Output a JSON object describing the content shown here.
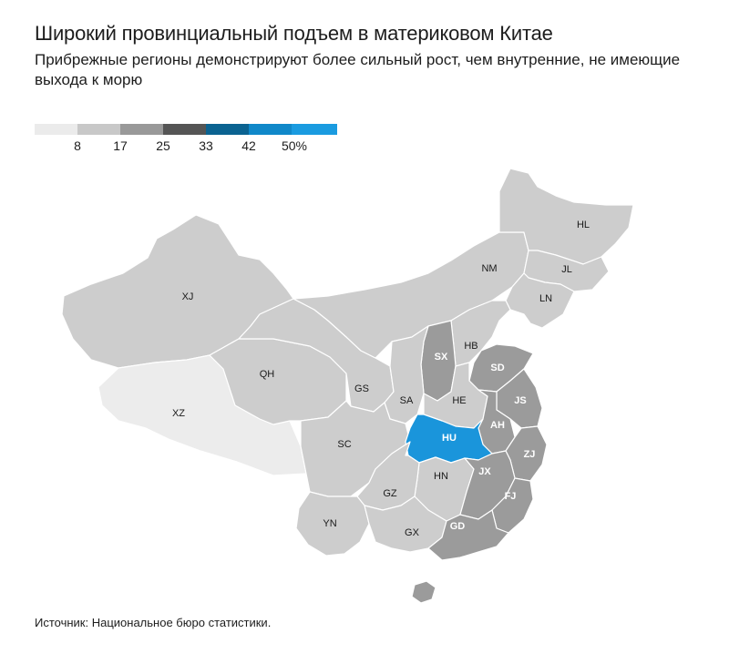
{
  "title": "Широкий провинциальный подъем в материковом Китае",
  "subtitle": "Прибрежные регионы демонстрируют более сильный рост, чем внутренние, не имеющие выхода к морю",
  "legend": {
    "colors": [
      "#ebebeb",
      "#c8c8c8",
      "#999999",
      "#555555",
      "#0b6391",
      "#1088c9",
      "#1a9be0"
    ],
    "ticks": [
      "8",
      "17",
      "25",
      "33",
      "42",
      "50%"
    ]
  },
  "colors": {
    "low": "#ececec",
    "mid": "#cdcdcd",
    "high": "#9b9b9b",
    "highlight": "#1a95db",
    "border": "#ffffff"
  },
  "regions": [
    {
      "code": "XJ",
      "level": "mid"
    },
    {
      "code": "XZ",
      "level": "low"
    },
    {
      "code": "QH",
      "level": "mid"
    },
    {
      "code": "GS",
      "level": "mid"
    },
    {
      "code": "NM",
      "level": "mid"
    },
    {
      "code": "HL",
      "level": "mid"
    },
    {
      "code": "JL",
      "level": "mid"
    },
    {
      "code": "LN",
      "level": "mid"
    },
    {
      "code": "HB",
      "level": "mid"
    },
    {
      "code": "SX",
      "level": "high"
    },
    {
      "code": "SD",
      "level": "high"
    },
    {
      "code": "SA",
      "level": "mid"
    },
    {
      "code": "HE",
      "level": "mid"
    },
    {
      "code": "JS",
      "level": "high"
    },
    {
      "code": "AH",
      "level": "high"
    },
    {
      "code": "SC",
      "level": "mid"
    },
    {
      "code": "HU",
      "level": "highlight"
    },
    {
      "code": "ZJ",
      "level": "high"
    },
    {
      "code": "HN",
      "level": "mid"
    },
    {
      "code": "JX",
      "level": "high"
    },
    {
      "code": "GZ",
      "level": "mid"
    },
    {
      "code": "FJ",
      "level": "high"
    },
    {
      "code": "YN",
      "level": "mid"
    },
    {
      "code": "GX",
      "level": "mid"
    },
    {
      "code": "GD",
      "level": "high"
    }
  ],
  "source": "Источник: Национальное бюро статистики."
}
